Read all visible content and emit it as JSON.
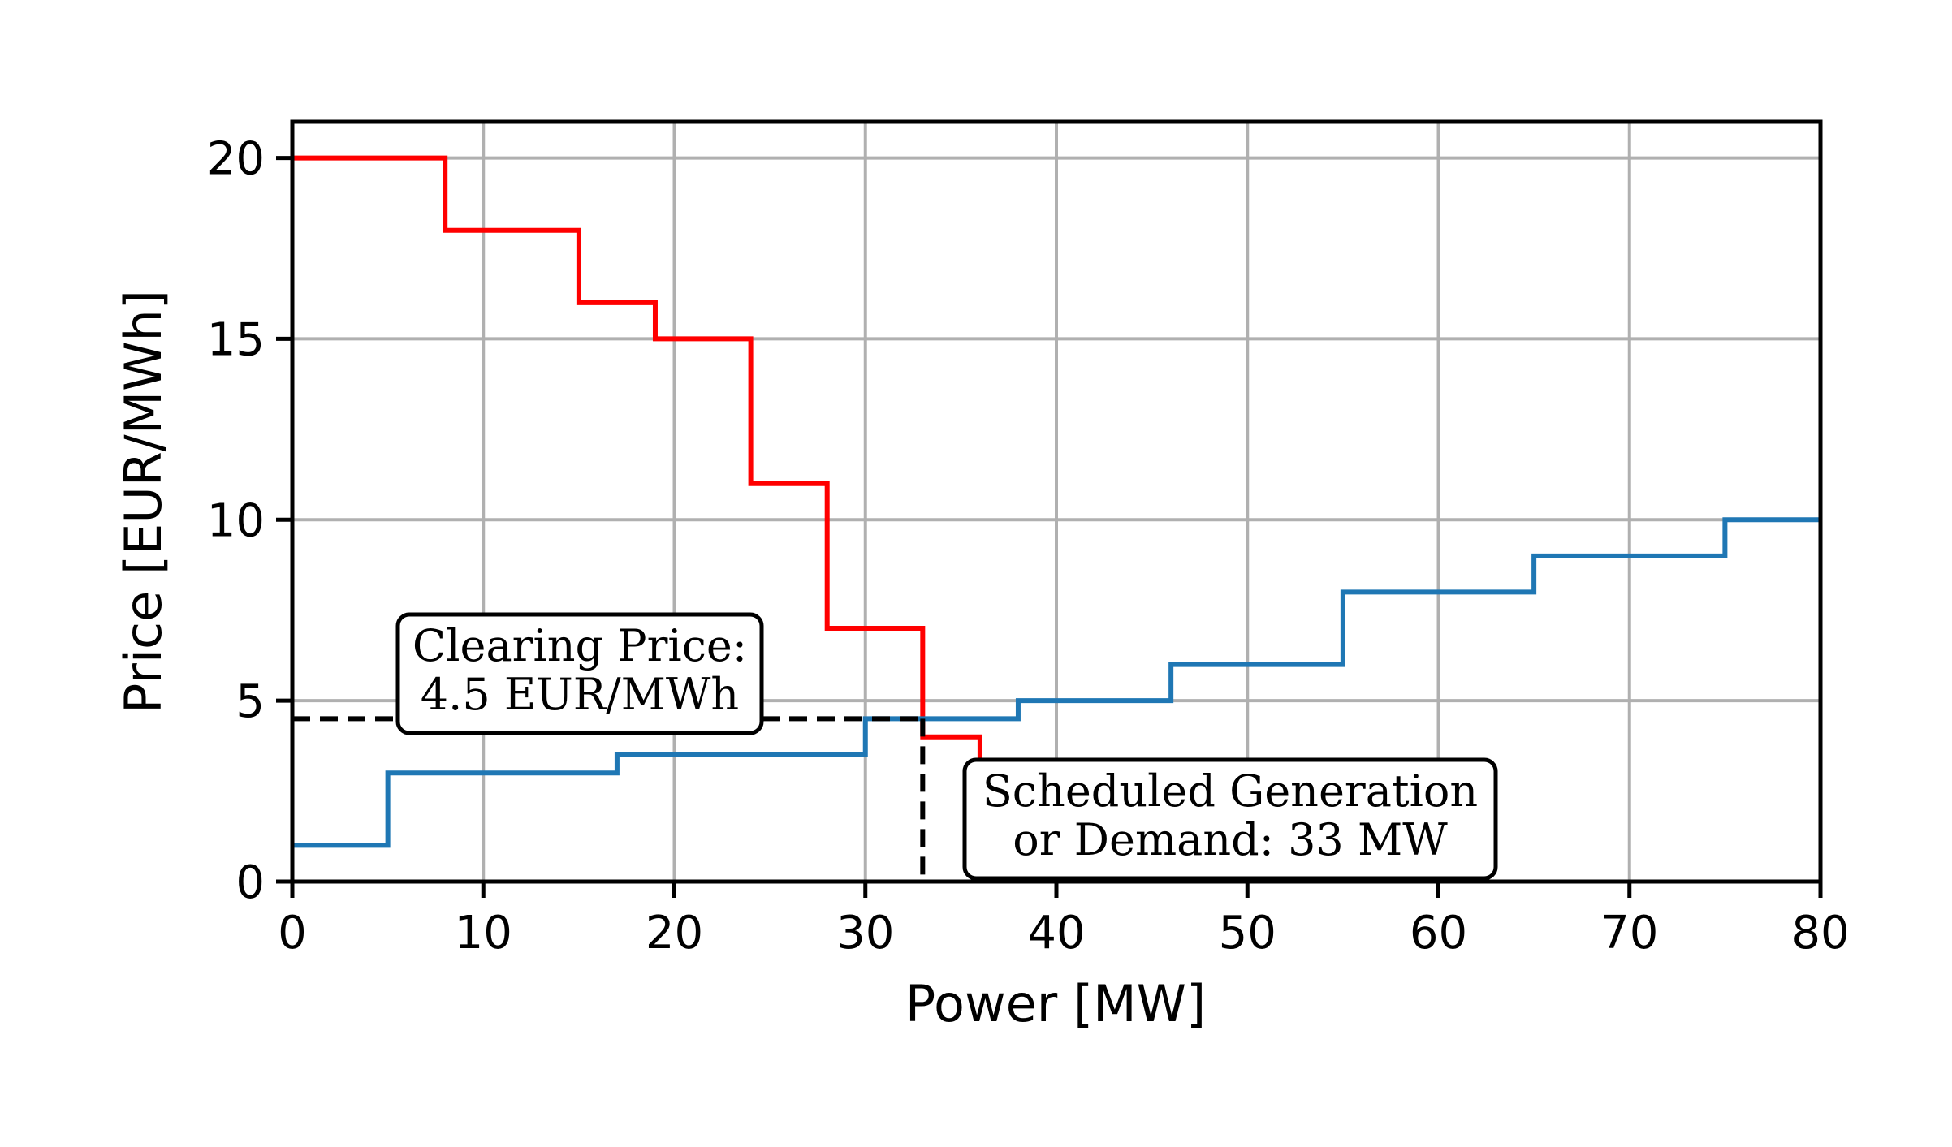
{
  "chart_data": {
    "type": "line",
    "step": "post",
    "xlabel": "Power [MW]",
    "ylabel": "Price [EUR/MWh]",
    "xlim": [
      0,
      80
    ],
    "ylim": [
      0,
      21
    ],
    "xticks": [
      0,
      10,
      20,
      30,
      40,
      50,
      60,
      70,
      80
    ],
    "yticks": [
      0,
      5,
      10,
      15,
      20
    ],
    "grid": true,
    "series": [
      {
        "color": "#ff0000",
        "x": [
          0,
          8,
          15,
          19,
          24,
          28,
          33,
          36
        ],
        "y": [
          20,
          18,
          16,
          15,
          11,
          7,
          4,
          3
        ]
      },
      {
        "color": "#1f77b4",
        "x": [
          0,
          5,
          17,
          30,
          38,
          46,
          55,
          65,
          75,
          80
        ],
        "y": [
          1,
          3,
          3.5,
          4.5,
          5,
          6,
          8,
          9,
          10,
          10
        ]
      }
    ],
    "clearing": {
      "x": 33,
      "y": 4.5,
      "color": "#000000"
    },
    "annotations": [
      {
        "id": "price",
        "lines": [
          "Clearing Price:",
          "4.5 EUR/MWh"
        ]
      },
      {
        "id": "quantity",
        "lines": [
          "Scheduled Generation",
          "or Demand: 33 MW"
        ]
      }
    ]
  }
}
